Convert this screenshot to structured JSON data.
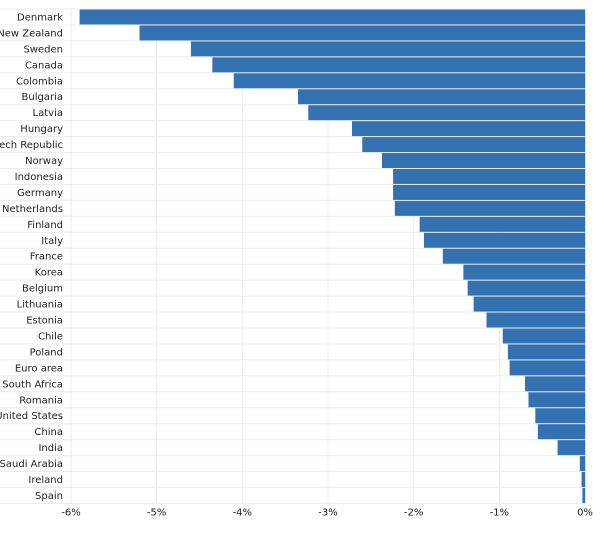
{
  "chart_data": {
    "type": "bar",
    "orientation": "horizontal",
    "title": "",
    "xlabel": "",
    "ylabel": "",
    "categories": [
      "Denmark",
      "New Zealand",
      "Sweden",
      "Canada",
      "Colombia",
      "Bulgaria",
      "Latvia",
      "Hungary",
      "Czech Republic",
      "Norway",
      "Indonesia",
      "Germany",
      "Netherlands",
      "Finland",
      "Italy",
      "France",
      "Korea",
      "Belgium",
      "Lithuania",
      "Estonia",
      "Chile",
      "Poland",
      "Euro area",
      "South Africa",
      "Romania",
      "United States",
      "China",
      "India",
      "Saudi Arabia",
      "Ireland",
      "Spain"
    ],
    "values": [
      -5.9,
      -5.2,
      -4.6,
      -4.35,
      -4.1,
      -3.35,
      -3.23,
      -2.72,
      -2.6,
      -2.37,
      -2.24,
      -2.24,
      -2.22,
      -1.93,
      -1.88,
      -1.66,
      -1.42,
      -1.37,
      -1.3,
      -1.15,
      -0.96,
      -0.9,
      -0.88,
      -0.7,
      -0.66,
      -0.58,
      -0.55,
      -0.32,
      -0.06,
      -0.04,
      -0.03
    ],
    "xlim": [
      -6,
      0
    ],
    "x_ticks": [
      -6,
      -5,
      -4,
      -3,
      -2,
      -1,
      0
    ],
    "x_tick_labels": [
      "-6%",
      "-5%",
      "-4%",
      "-3%",
      "-2%",
      "-1%",
      "0%"
    ],
    "grid": true,
    "legend": "none",
    "colors": {
      "bar": "#3371b1",
      "grid": "#ececec",
      "text": "#222222"
    }
  }
}
